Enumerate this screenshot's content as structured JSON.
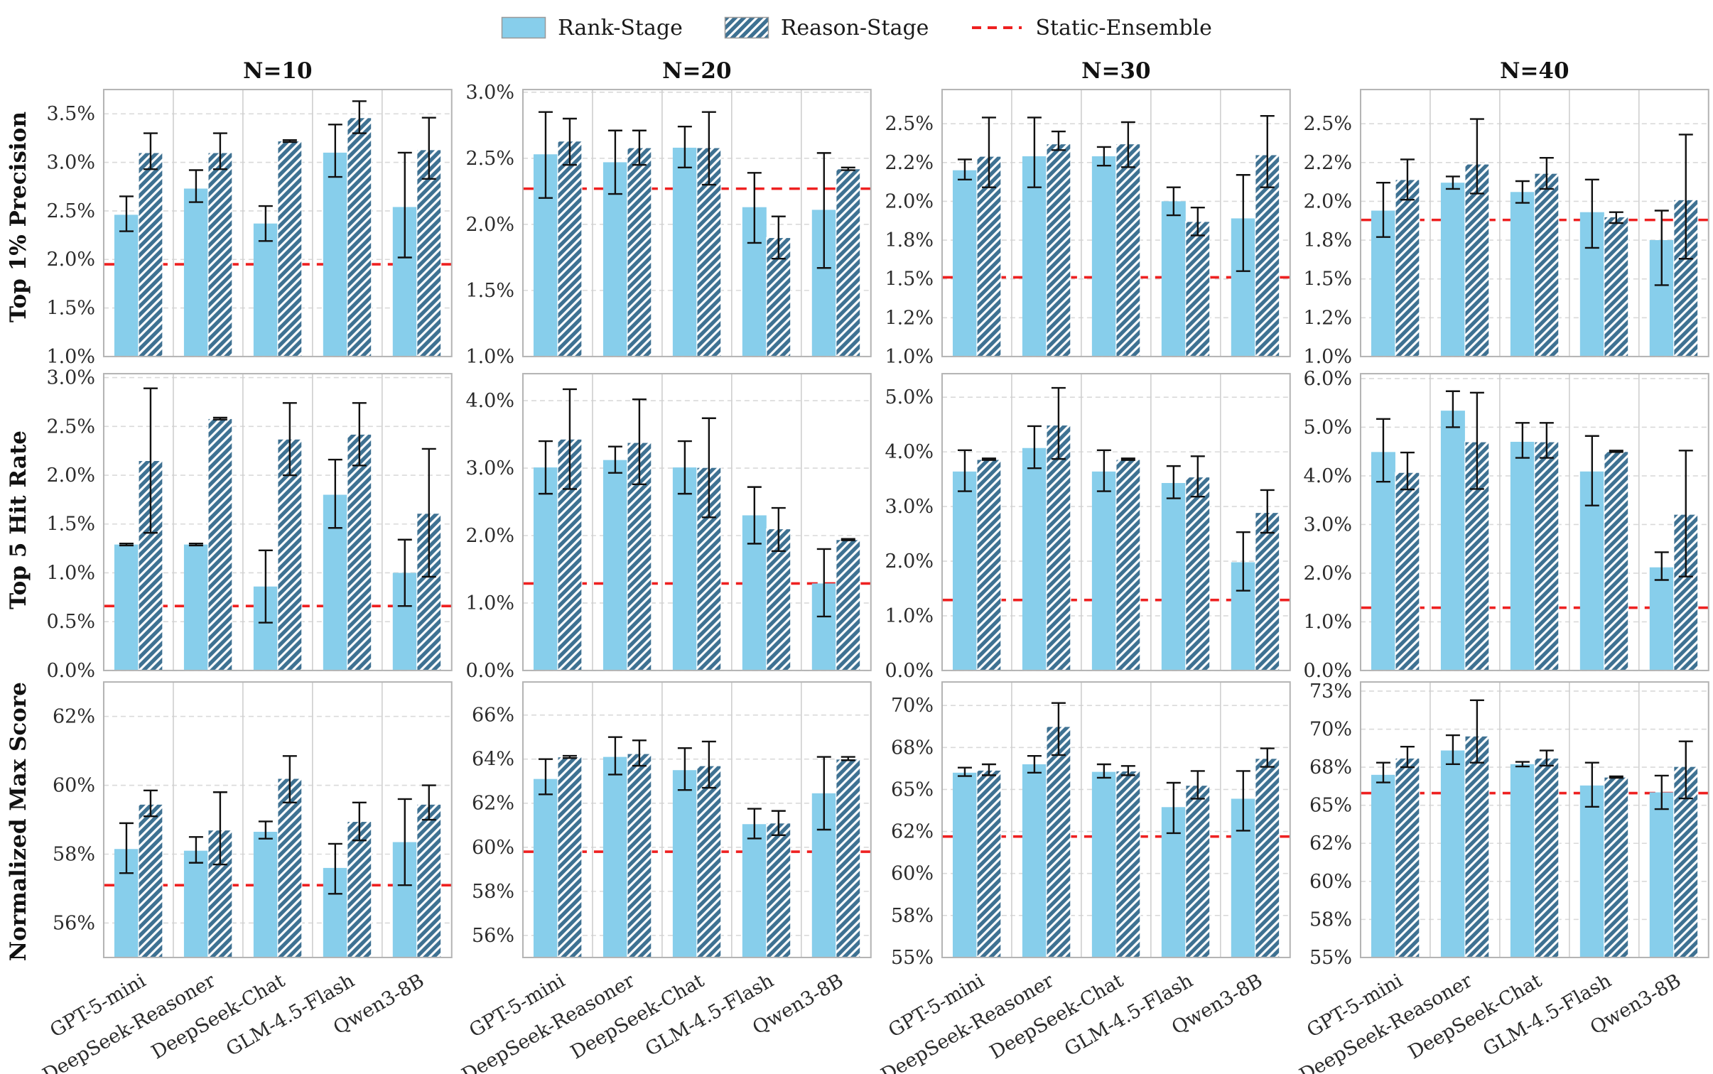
{
  "legend": {
    "rank_label": "Rank-Stage",
    "reason_label": "Reason-Stage",
    "static_label": "Static-Ensemble"
  },
  "colors": {
    "rank_stage": "#87CEEB",
    "reason_stage": "#3E7192",
    "static_ensemble": "#EE2020",
    "frame": "#b3b3b3",
    "grid_h": "#d9d9d9",
    "grid_v": "#cfcfcf",
    "text": "#2b2b2b",
    "error": "#111111",
    "title": "#111111"
  },
  "models": [
    "GPT-5-mini",
    "DeepSeek-Reasoner",
    "DeepSeek-Chat",
    "GLM-4.5-Flash",
    "Qwen3-8B"
  ],
  "row_labels": [
    "Top 1% Precision",
    "Top 5 Hit Rate",
    "Normalized Max Score"
  ],
  "col_titles": [
    "N=10",
    "N=20",
    "N=30",
    "N=40"
  ],
  "chart_data": [
    {
      "type": "bar",
      "row": 0,
      "col": 0,
      "row_label": "Top 1% Precision",
      "col_title": "N=10",
      "ylim": [
        1.0,
        3.75
      ],
      "yticks": [
        1.0,
        1.5,
        2.0,
        2.5,
        3.0,
        3.5
      ],
      "ytick_labels": [
        "1.0%",
        "1.5%",
        "2.0%",
        "2.5%",
        "3.0%",
        "3.5%"
      ],
      "static_ensemble": 1.95,
      "rank": {
        "values": [
          2.46,
          2.73,
          2.37,
          3.1,
          2.54
        ],
        "err_lo": [
          2.29,
          2.59,
          2.19,
          2.85,
          2.02
        ],
        "err_hi": [
          2.65,
          2.92,
          2.55,
          3.39,
          3.1
        ]
      },
      "reason": {
        "values": [
          3.1,
          3.1,
          3.22,
          3.46,
          3.13
        ],
        "err_lo": [
          2.93,
          2.93,
          3.21,
          3.3,
          2.83
        ],
        "err_hi": [
          3.3,
          3.3,
          3.23,
          3.63,
          3.46
        ]
      }
    },
    {
      "type": "bar",
      "row": 0,
      "col": 1,
      "row_label": "Top 1% Precision",
      "col_title": "N=20",
      "ylim": [
        1.0,
        3.02
      ],
      "yticks": [
        1.0,
        1.5,
        2.0,
        2.5,
        3.0
      ],
      "ytick_labels": [
        "1.0%",
        "1.5%",
        "2.0%",
        "2.5%",
        "3.0%"
      ],
      "static_ensemble": 2.27,
      "rank": {
        "values": [
          2.53,
          2.47,
          2.58,
          2.13,
          2.11
        ],
        "err_lo": [
          2.2,
          2.23,
          2.43,
          1.86,
          1.67
        ],
        "err_hi": [
          2.85,
          2.71,
          2.74,
          2.39,
          2.54
        ]
      },
      "reason": {
        "values": [
          2.63,
          2.58,
          2.58,
          1.9,
          2.42
        ],
        "err_lo": [
          2.45,
          2.45,
          2.3,
          1.74,
          2.41
        ],
        "err_hi": [
          2.8,
          2.71,
          2.85,
          2.06,
          2.43
        ]
      }
    },
    {
      "type": "bar",
      "row": 0,
      "col": 2,
      "row_label": "Top 1% Precision",
      "col_title": "N=30",
      "ylim": [
        1.0,
        2.72
      ],
      "yticks": [
        1.0,
        1.25,
        1.5,
        1.75,
        2.0,
        2.25,
        2.5
      ],
      "ytick_labels": [
        "1.0%",
        "1.2%",
        "1.5%",
        "1.8%",
        "2.0%",
        "2.2%",
        "2.5%"
      ],
      "static_ensemble": 1.51,
      "rank": {
        "values": [
          2.2,
          2.29,
          2.29,
          2.0,
          1.89
        ],
        "err_lo": [
          2.14,
          2.09,
          2.23,
          1.91,
          1.55
        ],
        "err_hi": [
          2.27,
          2.54,
          2.35,
          2.09,
          2.17
        ]
      },
      "reason": {
        "values": [
          2.29,
          2.37,
          2.37,
          1.87,
          2.3
        ],
        "err_lo": [
          2.09,
          2.33,
          2.22,
          1.78,
          2.09
        ],
        "err_hi": [
          2.54,
          2.45,
          2.51,
          1.96,
          2.55
        ]
      }
    },
    {
      "type": "bar",
      "row": 0,
      "col": 3,
      "row_label": "Top 1% Precision",
      "col_title": "N=40",
      "ylim": [
        1.0,
        2.72
      ],
      "yticks": [
        1.0,
        1.25,
        1.5,
        1.75,
        2.0,
        2.25,
        2.5
      ],
      "ytick_labels": [
        "1.0%",
        "1.2%",
        "1.5%",
        "1.8%",
        "2.0%",
        "2.2%",
        "2.5%"
      ],
      "static_ensemble": 1.88,
      "rank": {
        "values": [
          1.94,
          2.12,
          2.06,
          1.93,
          1.75
        ],
        "err_lo": [
          1.77,
          2.08,
          1.99,
          1.7,
          1.46
        ],
        "err_hi": [
          2.12,
          2.16,
          2.13,
          2.14,
          1.94
        ]
      },
      "reason": {
        "values": [
          2.14,
          2.24,
          2.18,
          1.9,
          2.01
        ],
        "err_lo": [
          2.01,
          2.05,
          2.08,
          1.86,
          1.63
        ],
        "err_hi": [
          2.27,
          2.53,
          2.28,
          1.93,
          2.43
        ]
      }
    },
    {
      "type": "bar",
      "row": 1,
      "col": 0,
      "row_label": "Top 5 Hit Rate",
      "col_title": "N=10",
      "ylim": [
        0.0,
        3.04
      ],
      "yticks": [
        0.0,
        0.5,
        1.0,
        1.5,
        2.0,
        2.5,
        3.0
      ],
      "ytick_labels": [
        "0.0%",
        "0.5%",
        "1.0%",
        "1.5%",
        "2.0%",
        "2.5%",
        "3.0%"
      ],
      "static_ensemble": 0.66,
      "rank": {
        "values": [
          1.29,
          1.29,
          0.86,
          1.8,
          1.0
        ],
        "err_lo": [
          1.28,
          1.28,
          0.49,
          1.46,
          0.66
        ],
        "err_hi": [
          1.3,
          1.3,
          1.23,
          2.16,
          1.34
        ]
      },
      "reason": {
        "values": [
          2.15,
          2.58,
          2.37,
          2.42,
          1.61
        ],
        "err_lo": [
          1.41,
          2.57,
          2.0,
          2.1,
          0.96
        ],
        "err_hi": [
          2.89,
          2.59,
          2.74,
          2.74,
          2.27
        ]
      }
    },
    {
      "type": "bar",
      "row": 1,
      "col": 1,
      "row_label": "Top 5 Hit Rate",
      "col_title": "N=20",
      "ylim": [
        0.0,
        4.4
      ],
      "yticks": [
        0.0,
        1.0,
        2.0,
        3.0,
        4.0
      ],
      "ytick_labels": [
        "0.0%",
        "1.0%",
        "2.0%",
        "3.0%",
        "4.0%"
      ],
      "static_ensemble": 1.29,
      "rank": {
        "values": [
          3.01,
          3.12,
          3.01,
          2.3,
          1.29
        ],
        "err_lo": [
          2.62,
          2.93,
          2.62,
          1.88,
          0.8
        ],
        "err_hi": [
          3.4,
          3.32,
          3.4,
          2.72,
          1.8
        ]
      },
      "reason": {
        "values": [
          3.43,
          3.38,
          3.01,
          2.1,
          1.94
        ],
        "err_lo": [
          2.69,
          2.76,
          2.27,
          1.77,
          1.93
        ],
        "err_hi": [
          4.17,
          4.02,
          3.74,
          2.41,
          1.95
        ]
      }
    },
    {
      "type": "bar",
      "row": 1,
      "col": 2,
      "row_label": "Top 5 Hit Rate",
      "col_title": "N=30",
      "ylim": [
        0.0,
        5.43
      ],
      "yticks": [
        0.0,
        1.0,
        2.0,
        3.0,
        4.0,
        5.0
      ],
      "ytick_labels": [
        "0.0%",
        "1.0%",
        "2.0%",
        "3.0%",
        "4.0%",
        "5.0%"
      ],
      "static_ensemble": 1.29,
      "rank": {
        "values": [
          3.64,
          4.07,
          3.64,
          3.43,
          1.98
        ],
        "err_lo": [
          3.28,
          3.7,
          3.28,
          3.15,
          1.46
        ],
        "err_hi": [
          4.03,
          4.47,
          4.03,
          3.74,
          2.53
        ]
      },
      "reason": {
        "values": [
          3.86,
          4.49,
          3.86,
          3.54,
          2.89
        ],
        "err_lo": [
          3.85,
          3.87,
          3.85,
          3.18,
          2.52
        ],
        "err_hi": [
          3.88,
          5.17,
          3.88,
          3.92,
          3.3
        ]
      }
    },
    {
      "type": "bar",
      "row": 1,
      "col": 3,
      "row_label": "Top 5 Hit Rate",
      "col_title": "N=40",
      "ylim": [
        0.0,
        6.1
      ],
      "yticks": [
        0.0,
        1.0,
        2.0,
        3.0,
        4.0,
        5.0,
        6.0
      ],
      "ytick_labels": [
        "0.0%",
        "1.0%",
        "2.0%",
        "3.0%",
        "4.0%",
        "5.0%",
        "6.0%"
      ],
      "static_ensemble": 1.29,
      "rank": {
        "values": [
          4.49,
          5.34,
          4.7,
          4.09,
          2.12
        ],
        "err_lo": [
          3.88,
          5.0,
          4.37,
          3.39,
          1.86
        ],
        "err_hi": [
          5.17,
          5.74,
          5.09,
          4.82,
          2.43
        ]
      },
      "reason": {
        "values": [
          4.07,
          4.7,
          4.7,
          4.5,
          3.21
        ],
        "err_lo": [
          3.72,
          3.73,
          4.37,
          4.49,
          1.93
        ],
        "err_hi": [
          4.48,
          5.71,
          5.09,
          4.52,
          4.52
        ]
      }
    },
    {
      "type": "bar",
      "row": 2,
      "col": 0,
      "row_label": "Normalized Max Score",
      "col_title": "N=10",
      "ylim": [
        55,
        63
      ],
      "yticks": [
        56,
        58,
        60,
        62
      ],
      "ytick_labels": [
        "56%",
        "58%",
        "60%",
        "62%"
      ],
      "static_ensemble": 57.1,
      "rank": {
        "values": [
          58.15,
          58.1,
          58.65,
          57.6,
          58.35
        ],
        "err_lo": [
          57.45,
          57.75,
          58.45,
          56.85,
          57.1
        ],
        "err_hi": [
          58.9,
          58.5,
          58.95,
          58.3,
          59.6
        ]
      },
      "reason": {
        "values": [
          59.45,
          58.7,
          60.2,
          58.95,
          59.45
        ],
        "err_lo": [
          59.1,
          57.7,
          59.5,
          58.4,
          59.0
        ],
        "err_hi": [
          59.85,
          59.8,
          60.85,
          59.5,
          60.0
        ]
      }
    },
    {
      "type": "bar",
      "row": 2,
      "col": 1,
      "row_label": "Normalized Max Score",
      "col_title": "N=20",
      "ylim": [
        55,
        67.5
      ],
      "yticks": [
        56,
        58,
        60,
        62,
        64,
        66
      ],
      "ytick_labels": [
        "56%",
        "58%",
        "60%",
        "62%",
        "64%",
        "66%"
      ],
      "static_ensemble": 59.8,
      "rank": {
        "values": [
          63.1,
          64.1,
          63.5,
          61.05,
          62.45
        ],
        "err_lo": [
          62.4,
          63.3,
          62.6,
          60.4,
          60.8
        ],
        "err_hi": [
          64.0,
          65.0,
          64.5,
          61.75,
          64.1
        ]
      },
      "reason": {
        "values": [
          64.1,
          64.25,
          63.7,
          61.1,
          64.0
        ],
        "err_lo": [
          64.05,
          63.7,
          62.7,
          60.55,
          63.95
        ],
        "err_hi": [
          64.15,
          64.85,
          64.8,
          61.65,
          64.1
        ]
      }
    },
    {
      "type": "bar",
      "row": 2,
      "col": 2,
      "row_label": "Normalized Max Score",
      "col_title": "N=30",
      "ylim": [
        55,
        71.4
      ],
      "yticks": [
        55,
        57.5,
        60,
        62.5,
        65,
        67.5,
        70
      ],
      "ytick_labels": [
        "55%",
        "58%",
        "60%",
        "62%",
        "65%",
        "68%",
        "70%"
      ],
      "static_ensemble": 62.2,
      "rank": {
        "values": [
          66.0,
          66.5,
          66.05,
          63.95,
          64.45
        ],
        "err_lo": [
          65.8,
          66.0,
          65.7,
          62.4,
          62.55
        ],
        "err_hi": [
          66.3,
          67.0,
          66.5,
          65.4,
          66.1
        ]
      },
      "reason": {
        "values": [
          66.15,
          68.75,
          66.1,
          65.25,
          66.85
        ],
        "err_lo": [
          65.85,
          67.05,
          65.85,
          64.45,
          66.35
        ],
        "err_hi": [
          66.5,
          70.15,
          66.4,
          66.1,
          67.45
        ]
      }
    },
    {
      "type": "bar",
      "row": 2,
      "col": 3,
      "row_label": "Normalized Max Score",
      "col_title": "N=40",
      "ylim": [
        55,
        73.1
      ],
      "yticks": [
        55,
        57.5,
        60,
        62.5,
        65,
        67.5,
        70,
        72.5
      ],
      "ytick_labels": [
        "55%",
        "58%",
        "60%",
        "62%",
        "65%",
        "68%",
        "70%",
        "73%"
      ],
      "static_ensemble": 65.8,
      "rank": {
        "values": [
          67.0,
          68.6,
          67.7,
          66.3,
          65.85
        ],
        "err_lo": [
          66.5,
          67.7,
          67.55,
          64.9,
          64.75
        ],
        "err_hi": [
          67.8,
          69.6,
          67.85,
          67.8,
          66.95
        ]
      },
      "reason": {
        "values": [
          68.1,
          69.55,
          68.1,
          66.85,
          67.55
        ],
        "err_lo": [
          67.5,
          67.8,
          67.6,
          66.8,
          65.45
        ],
        "err_hi": [
          68.85,
          71.9,
          68.6,
          66.9,
          69.2
        ]
      }
    }
  ]
}
